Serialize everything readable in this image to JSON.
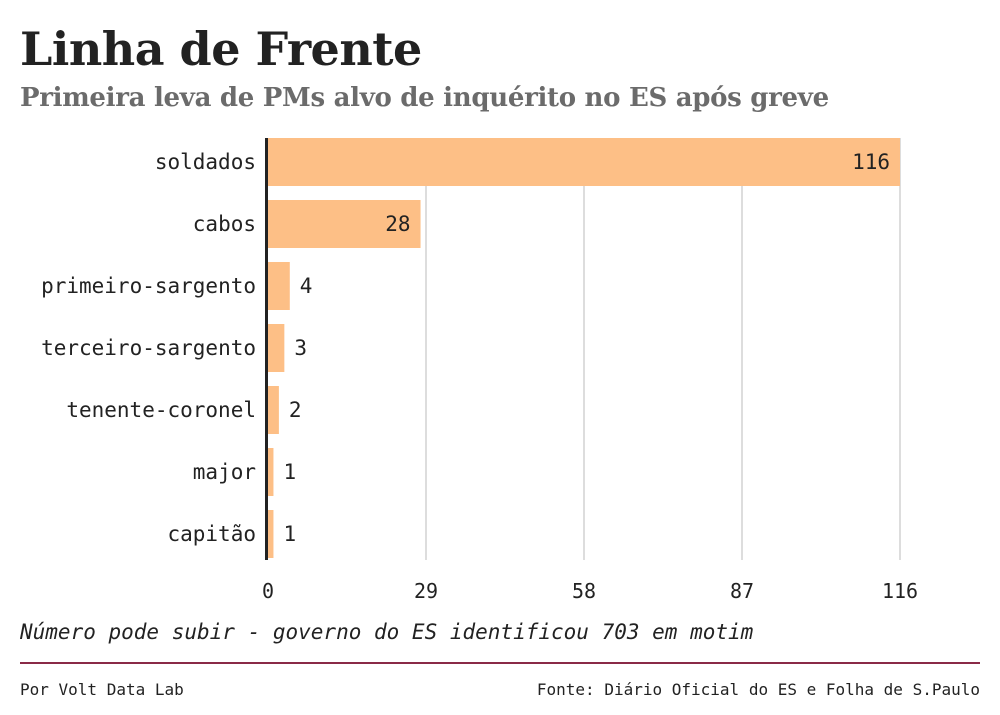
{
  "header": {
    "title": "Linha de Frente",
    "subtitle": "Primeira leva de PMs alvo de inquérito no ES após greve"
  },
  "chart_data": {
    "type": "bar",
    "orientation": "horizontal",
    "categories": [
      "soldados",
      "cabos",
      "primeiro-sargento",
      "terceiro-sargento",
      "tenente-coronel",
      "major",
      "capitão"
    ],
    "values": [
      116,
      28,
      4,
      3,
      2,
      1,
      1
    ],
    "xticks": [
      0,
      29,
      58,
      87,
      116
    ],
    "xlim": [
      0,
      116
    ],
    "grid": "vertical",
    "bar_color": "#fdbf86",
    "gridline_color": "#dddddd",
    "axis_color": "#222222"
  },
  "footer": {
    "note": "Número pode subir - governo do ES identificou 703 em motim",
    "credit": "Por Volt Data Lab",
    "source": "Fonte: Diário Oficial do ES e Folha de S.Paulo",
    "rule_color": "#8a2a47"
  }
}
